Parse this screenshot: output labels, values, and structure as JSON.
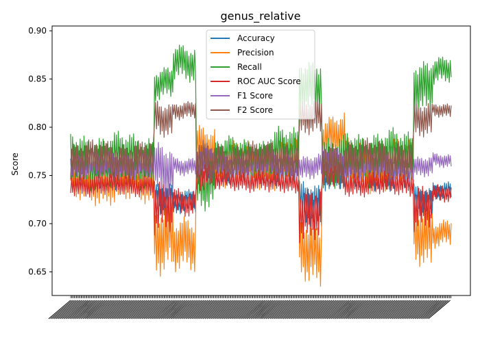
{
  "chart_data": {
    "type": "line",
    "title": "genus_relative",
    "xlabel": "",
    "ylabel": "Score",
    "ylim": [
      0.6255,
      0.905
    ],
    "yticks": [
      "0.65",
      "0.70",
      "0.75",
      "0.80",
      "0.85",
      "0.90"
    ],
    "ytick_values": [
      0.65,
      0.7,
      0.75,
      0.8,
      0.85,
      0.9
    ],
    "grid": false,
    "legend_position": "top-center",
    "x_count": 400,
    "x_tick_labels_note": "dense overlapping rotated labels, illegible",
    "series": [
      {
        "name": "Accuracy",
        "color": "#1f77b4",
        "segments": [
          {
            "to": 0.0,
            "base": 0.757,
            "amp": 0.014
          },
          {
            "to": 0.22,
            "base": 0.752,
            "amp": 0.016
          },
          {
            "to": 0.27,
            "base": 0.728,
            "amp": 0.018
          },
          {
            "to": 0.33,
            "base": 0.722,
            "amp": 0.013
          },
          {
            "to": 0.38,
            "base": 0.758,
            "amp": 0.02
          },
          {
            "to": 0.52,
            "base": 0.755,
            "amp": 0.015
          },
          {
            "to": 0.6,
            "base": 0.755,
            "amp": 0.015
          },
          {
            "to": 0.66,
            "base": 0.718,
            "amp": 0.025
          },
          {
            "to": 0.72,
            "base": 0.755,
            "amp": 0.02
          },
          {
            "to": 0.9,
            "base": 0.75,
            "amp": 0.016
          },
          {
            "to": 0.95,
            "base": 0.722,
            "amp": 0.018
          },
          {
            "to": 1.0,
            "base": 0.735,
            "amp": 0.01
          }
        ]
      },
      {
        "name": "Precision",
        "color": "#ff7f0e",
        "segments": [
          {
            "to": 0.0,
            "base": 0.748,
            "amp": 0.022
          },
          {
            "to": 0.22,
            "base": 0.745,
            "amp": 0.026
          },
          {
            "to": 0.27,
            "base": 0.688,
            "amp": 0.04
          },
          {
            "to": 0.33,
            "base": 0.675,
            "amp": 0.03
          },
          {
            "to": 0.38,
            "base": 0.78,
            "amp": 0.025
          },
          {
            "to": 0.52,
            "base": 0.76,
            "amp": 0.025
          },
          {
            "to": 0.6,
            "base": 0.762,
            "amp": 0.028
          },
          {
            "to": 0.66,
            "base": 0.672,
            "amp": 0.036
          },
          {
            "to": 0.72,
            "base": 0.79,
            "amp": 0.025
          },
          {
            "to": 0.9,
            "base": 0.76,
            "amp": 0.028
          },
          {
            "to": 0.95,
            "base": 0.69,
            "amp": 0.035
          },
          {
            "to": 1.0,
            "base": 0.69,
            "amp": 0.015
          }
        ]
      },
      {
        "name": "Recall",
        "color": "#2ca02c",
        "segments": [
          {
            "to": 0.0,
            "base": 0.76,
            "amp": 0.04
          },
          {
            "to": 0.22,
            "base": 0.765,
            "amp": 0.03
          },
          {
            "to": 0.27,
            "base": 0.845,
            "amp": 0.018
          },
          {
            "to": 0.33,
            "base": 0.865,
            "amp": 0.02
          },
          {
            "to": 0.38,
            "base": 0.745,
            "amp": 0.03
          },
          {
            "to": 0.52,
            "base": 0.768,
            "amp": 0.022
          },
          {
            "to": 0.6,
            "base": 0.77,
            "amp": 0.03
          },
          {
            "to": 0.66,
            "base": 0.845,
            "amp": 0.03
          },
          {
            "to": 0.72,
            "base": 0.76,
            "amp": 0.03
          },
          {
            "to": 0.9,
            "base": 0.768,
            "amp": 0.03
          },
          {
            "to": 0.95,
            "base": 0.845,
            "amp": 0.03
          },
          {
            "to": 1.0,
            "base": 0.858,
            "amp": 0.015
          }
        ]
      },
      {
        "name": "ROC AUC Score",
        "color": "#d62728",
        "segments": [
          {
            "to": 0.0,
            "base": 0.742,
            "amp": 0.012
          },
          {
            "to": 0.22,
            "base": 0.74,
            "amp": 0.012
          },
          {
            "to": 0.27,
            "base": 0.715,
            "amp": 0.03
          },
          {
            "to": 0.33,
            "base": 0.722,
            "amp": 0.015
          },
          {
            "to": 0.38,
            "base": 0.752,
            "amp": 0.018
          },
          {
            "to": 0.52,
            "base": 0.745,
            "amp": 0.012
          },
          {
            "to": 0.6,
            "base": 0.742,
            "amp": 0.012
          },
          {
            "to": 0.66,
            "base": 0.712,
            "amp": 0.03
          },
          {
            "to": 0.72,
            "base": 0.752,
            "amp": 0.018
          },
          {
            "to": 0.9,
            "base": 0.742,
            "amp": 0.014
          },
          {
            "to": 0.95,
            "base": 0.718,
            "amp": 0.025
          },
          {
            "to": 1.0,
            "base": 0.73,
            "amp": 0.01
          }
        ]
      },
      {
        "name": "F1 Score",
        "color": "#9467bd",
        "segments": [
          {
            "to": 0.0,
            "base": 0.76,
            "amp": 0.012
          },
          {
            "to": 0.22,
            "base": 0.76,
            "amp": 0.014
          },
          {
            "to": 0.27,
            "base": 0.752,
            "amp": 0.03
          },
          {
            "to": 0.33,
            "base": 0.76,
            "amp": 0.01
          },
          {
            "to": 0.38,
            "base": 0.765,
            "amp": 0.015
          },
          {
            "to": 0.52,
            "base": 0.76,
            "amp": 0.012
          },
          {
            "to": 0.6,
            "base": 0.76,
            "amp": 0.014
          },
          {
            "to": 0.66,
            "base": 0.758,
            "amp": 0.014
          },
          {
            "to": 0.72,
            "base": 0.765,
            "amp": 0.015
          },
          {
            "to": 0.9,
            "base": 0.758,
            "amp": 0.014
          },
          {
            "to": 0.95,
            "base": 0.758,
            "amp": 0.012
          },
          {
            "to": 1.0,
            "base": 0.765,
            "amp": 0.008
          }
        ]
      },
      {
        "name": "F2 Score",
        "color": "#8c564b",
        "segments": [
          {
            "to": 0.0,
            "base": 0.76,
            "amp": 0.025
          },
          {
            "to": 0.22,
            "base": 0.765,
            "amp": 0.022
          },
          {
            "to": 0.27,
            "base": 0.808,
            "amp": 0.02
          },
          {
            "to": 0.33,
            "base": 0.818,
            "amp": 0.01
          },
          {
            "to": 0.38,
            "base": 0.76,
            "amp": 0.025
          },
          {
            "to": 0.52,
            "base": 0.765,
            "amp": 0.02
          },
          {
            "to": 0.6,
            "base": 0.766,
            "amp": 0.022
          },
          {
            "to": 0.66,
            "base": 0.808,
            "amp": 0.02
          },
          {
            "to": 0.72,
            "base": 0.762,
            "amp": 0.025
          },
          {
            "to": 0.9,
            "base": 0.766,
            "amp": 0.022
          },
          {
            "to": 0.95,
            "base": 0.805,
            "amp": 0.02
          },
          {
            "to": 1.0,
            "base": 0.818,
            "amp": 0.008
          }
        ]
      }
    ]
  }
}
